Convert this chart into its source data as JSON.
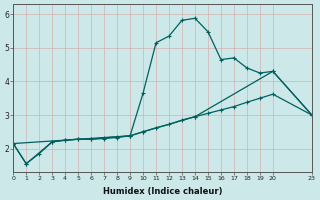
{
  "xlabel": "Humidex (Indice chaleur)",
  "background_color": "#cce8e8",
  "grid_color": "#d4b0b0",
  "line_color": "#006060",
  "xlim": [
    0,
    23
  ],
  "ylim": [
    1.3,
    6.3
  ],
  "yticks": [
    2,
    3,
    4,
    5,
    6
  ],
  "xtick_labels": [
    "0",
    "1",
    "2",
    "3",
    "4",
    "5",
    "6",
    "7",
    "8",
    "9",
    "10",
    "11",
    "12",
    "13",
    "14",
    "15",
    "16",
    "17",
    "18",
    "19",
    "20",
    "23"
  ],
  "xtick_vals": [
    0,
    1,
    2,
    3,
    4,
    5,
    6,
    7,
    8,
    9,
    10,
    11,
    12,
    13,
    14,
    15,
    16,
    17,
    18,
    19,
    20,
    23
  ],
  "series": [
    {
      "x": [
        0,
        1,
        2,
        3,
        4,
        5,
        6,
        7,
        8,
        9,
        10,
        11,
        12,
        13,
        14,
        15,
        16,
        17,
        18,
        19,
        20,
        23
      ],
      "y": [
        2.15,
        1.55,
        1.85,
        2.2,
        2.25,
        2.28,
        2.28,
        2.32,
        2.35,
        2.38,
        3.65,
        5.15,
        5.35,
        5.82,
        5.88,
        5.48,
        4.65,
        4.7,
        4.4,
        4.25,
        4.3,
        3.0
      ]
    },
    {
      "x": [
        0,
        1,
        3,
        4,
        5,
        6,
        7,
        8,
        9,
        10,
        11,
        12,
        13,
        14,
        15,
        16,
        17,
        18,
        19,
        20,
        23
      ],
      "y": [
        2.15,
        1.55,
        2.2,
        2.25,
        2.28,
        2.28,
        2.3,
        2.33,
        2.38,
        2.5,
        2.62,
        2.72,
        2.85,
        2.95,
        3.05,
        3.15,
        3.25,
        3.38,
        3.5,
        3.62,
        3.0
      ]
    },
    {
      "x": [
        0,
        9,
        10,
        14,
        20,
        23
      ],
      "y": [
        2.15,
        2.38,
        2.5,
        2.95,
        4.3,
        3.0
      ]
    }
  ]
}
